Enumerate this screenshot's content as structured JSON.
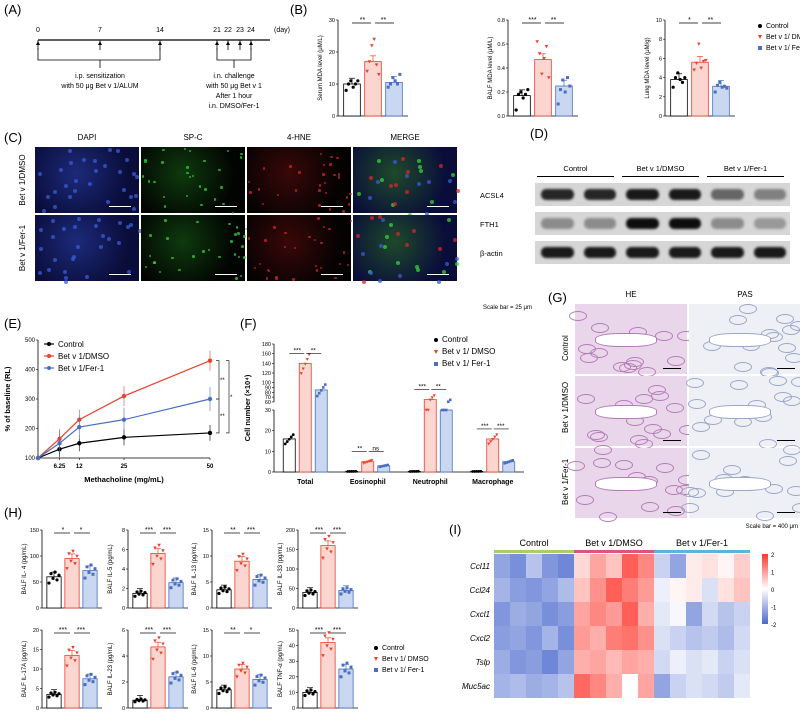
{
  "panels": {
    "A": "(A)",
    "B": "(B)",
    "C": "(C)",
    "D": "(D)",
    "E": "(E)",
    "F": "(F)",
    "G": "(G)",
    "H": "(H)",
    "I": "(I)"
  },
  "timeline": {
    "ticks": [
      "0",
      "7",
      "14",
      "21",
      "22",
      "23",
      "24"
    ],
    "unit": "(day)",
    "sensitization": [
      "i.p. sensitization",
      "with 50 μg Bet v 1/ALUM"
    ],
    "challenge": [
      "i.n. challenge",
      "with 50 μg Bet v 1",
      "After 1 hour",
      "i.n. DMSO/Fer-1"
    ]
  },
  "mda": {
    "legend": [
      "Control",
      "Bet v 1/ DMSO",
      "Bet v 1/ Fer-1"
    ],
    "plots": [
      {
        "ylabel": "Serum MDA level (μM/L)",
        "ticks": [
          "0",
          "10",
          "20",
          "30"
        ],
        "ymax": 30,
        "means": [
          10,
          17,
          10.5
        ],
        "sig": [
          "**",
          "**"
        ],
        "points": [
          [
            8,
            10,
            11,
            9,
            10,
            11
          ],
          [
            14,
            17,
            22,
            24,
            16,
            13
          ],
          [
            9,
            10,
            12,
            11,
            10,
            13
          ]
        ]
      },
      {
        "ylabel": "BALF MDA level (μM/L)",
        "ticks": [
          "0.0",
          "0.2",
          "0.4",
          "0.6",
          "0.8"
        ],
        "ymax": 0.8,
        "means": [
          0.17,
          0.47,
          0.25
        ],
        "sig": [
          "***",
          "**"
        ],
        "points": [
          [
            0.05,
            0.18,
            0.2,
            0.15,
            0.18,
            0.22
          ],
          [
            0.62,
            0.52,
            0.35,
            0.48,
            0.58,
            0.32
          ],
          [
            0.1,
            0.22,
            0.3,
            0.2,
            0.32,
            0.25
          ]
        ]
      },
      {
        "ylabel": "Lung MDA level (μM/g)",
        "ticks": [
          "0",
          "2",
          "4",
          "6",
          "8",
          "10"
        ],
        "ymax": 10,
        "means": [
          3.8,
          5.6,
          3.1
        ],
        "sig": [
          "*",
          "**"
        ],
        "points": [
          [
            3,
            4,
            4.5,
            3.8,
            3.5,
            4
          ],
          [
            4.8,
            5.5,
            7.5,
            5,
            5.7,
            5.8
          ],
          [
            2.5,
            3.2,
            3.5,
            3,
            3.1,
            2.9
          ]
        ]
      }
    ]
  },
  "if": {
    "columns": [
      "DAPI",
      "SP-C",
      "4-HNE",
      "MERGE"
    ],
    "rows": [
      "Bet v 1/DMSO",
      "Bet v 1/Fer-1"
    ],
    "scalebar": "Scale bar = 25 μm"
  },
  "wb": {
    "groups": [
      "Control",
      "Bet v 1/DMSO",
      "Bet v 1/Fer-1"
    ],
    "bands": [
      "ACSL4",
      "FTH1",
      "β-actin"
    ]
  },
  "chart_data": [
    {
      "type": "line",
      "xlabel": "Methacholine (mg/mL)",
      "ylabel": "% of baseline (RL)",
      "x": [
        0,
        6.25,
        12,
        25,
        50
      ],
      "xticks": [
        "6.25",
        "12",
        "25",
        "50"
      ],
      "yticks": [
        "100",
        "200",
        "300",
        "400",
        "500"
      ],
      "ylim": [
        100,
        500
      ],
      "series": [
        {
          "name": "Control",
          "values": [
            100,
            130,
            150,
            170,
            185
          ],
          "color": "#000000"
        },
        {
          "name": "Bet v 1/DMSO",
          "values": [
            100,
            165,
            230,
            310,
            430
          ],
          "color": "#e8412d"
        },
        {
          "name": "Bet v 1/Fer-1",
          "values": [
            100,
            150,
            205,
            230,
            300
          ],
          "color": "#4a6fc0"
        }
      ],
      "sig": [
        "**",
        "**",
        "*"
      ]
    },
    {
      "type": "bar",
      "ylabel": "Cell number (×10⁴)",
      "categories": [
        "Total",
        "Eosinophil",
        "Neutrophil",
        "Macrophage"
      ],
      "yticks": [
        "0",
        "10",
        "20",
        "30",
        "40",
        "50",
        "60",
        "70",
        "80",
        "90",
        "100",
        "120",
        "140",
        "160",
        "180"
      ],
      "series": [
        {
          "name": "Control",
          "values": [
            16,
            0.3,
            0.3,
            0.3
          ]
        },
        {
          "name": "Bet v 1/ DMSO",
          "values": [
            140,
            5,
            65,
            16
          ]
        },
        {
          "name": "Bet v 1/ Fer-1",
          "values": [
            85,
            3,
            57,
            5
          ]
        }
      ],
      "sig": [
        [
          "***",
          "**"
        ],
        [
          "**",
          "ns"
        ],
        [
          "***",
          "**"
        ],
        [
          "***",
          "***"
        ]
      ]
    }
  ],
  "histo": {
    "columns": [
      "HE",
      "PAS"
    ],
    "rows": [
      "Control",
      "Bet v 1/DMSO",
      "Bet v 1/Fer-1"
    ],
    "scalebar": "Scale bar = 400 μm"
  },
  "cytokines": {
    "legend": [
      "Control",
      "Bet v 1/ DMSO",
      "Bet v 1/ Fer-1"
    ],
    "plots": [
      {
        "ylabel": "BALF IL- 4 (pg/mL)",
        "ticks": [
          "0",
          "50",
          "100",
          "150"
        ],
        "ymax": 150,
        "means": [
          60,
          95,
          72
        ],
        "sig": [
          "*",
          "*"
        ]
      },
      {
        "ylabel": "BALF IL-5 (pg/mL)",
        "ticks": [
          "0",
          "2",
          "4",
          "6",
          "8"
        ],
        "ymax": 8,
        "means": [
          1.5,
          5.6,
          2.6
        ],
        "sig": [
          "***",
          "***"
        ]
      },
      {
        "ylabel": "BALF IL-13 (pg/mL)",
        "ticks": [
          "0",
          "5",
          "10",
          "15"
        ],
        "ymax": 15,
        "means": [
          3.5,
          9,
          5.5
        ],
        "sig": [
          "**",
          "***"
        ]
      },
      {
        "ylabel": "BALF IL-33 (pg/mL)",
        "ticks": [
          "0",
          "50",
          "100",
          "150",
          "200"
        ],
        "ymax": 200,
        "means": [
          40,
          160,
          45
        ],
        "sig": [
          "***",
          "***"
        ]
      },
      {
        "ylabel": "BALF IL-17A (pg/mL)",
        "ticks": [
          "0",
          "5",
          "10",
          "15",
          "20"
        ],
        "ymax": 20,
        "means": [
          3.5,
          13.5,
          7.5
        ],
        "sig": [
          "***",
          "***"
        ]
      },
      {
        "ylabel": "BALF IL-23 (pg/mL)",
        "ticks": [
          "0",
          "2",
          "4",
          "6"
        ],
        "ymax": 6,
        "means": [
          0.6,
          4.7,
          2.4
        ],
        "sig": [
          "***",
          "***"
        ]
      },
      {
        "ylabel": "BALF IL-6 (pg/mL)",
        "ticks": [
          "0",
          "5",
          "10",
          "15"
        ],
        "ymax": 15,
        "means": [
          3.5,
          7.5,
          5.5
        ],
        "sig": [
          "**",
          "*"
        ]
      },
      {
        "ylabel": "BALF TNF-α (pg/mL)",
        "ticks": [
          "0",
          "10",
          "20",
          "30",
          "40",
          "50"
        ],
        "ymax": 50,
        "means": [
          10,
          42,
          25
        ],
        "sig": [
          "***",
          "***"
        ]
      }
    ]
  },
  "heatmap": {
    "groups": [
      "Control",
      "Bet v 1/DMSO",
      "Bet v 1/Fer-1"
    ],
    "genes": [
      "Ccl11",
      "Ccl24",
      "Cxcl1",
      "Cxcl2",
      "Tslp",
      "Muc5ac"
    ],
    "scale": [
      "2",
      "1",
      "0",
      "-1",
      "-2"
    ],
    "values": [
      [
        -1.2,
        -1.5,
        -0.8,
        -1.4,
        -1.6,
        0.4,
        0.9,
        0.6,
        1.6,
        1.2,
        -0.6,
        -1.2,
        0.2,
        0.3,
        0.1,
        0.5
      ],
      [
        -1.0,
        -1.3,
        -1.4,
        -1.2,
        -0.9,
        0.6,
        1.1,
        1.6,
        1.3,
        1.0,
        -0.2,
        0.1,
        0.2,
        -0.4,
        0.3,
        0.6
      ],
      [
        -1.4,
        -1.1,
        -1.2,
        -1.5,
        -1.3,
        0.9,
        1.2,
        1.0,
        1.6,
        0.8,
        -0.3,
        -0.1,
        -1.2,
        -0.5,
        -0.8,
        -0.6
      ],
      [
        -1.3,
        -1.2,
        -1.4,
        -1.0,
        -1.5,
        1.0,
        0.8,
        1.3,
        1.4,
        1.1,
        -0.4,
        -0.6,
        -0.8,
        -0.7,
        -0.9,
        -0.5
      ],
      [
        -1.1,
        -1.4,
        -1.3,
        -1.6,
        -1.2,
        0.8,
        0.9,
        0.7,
        0.9,
        0.8,
        -0.5,
        -0.2,
        -0.4,
        -0.3,
        -0.6,
        -0.4
      ],
      [
        -1.0,
        -0.9,
        -1.1,
        -1.0,
        -0.8,
        1.5,
        1.2,
        0.8,
        0.0,
        0.9,
        -1.2,
        -0.6,
        -0.4,
        -0.5,
        -0.7,
        -0.3
      ]
    ]
  },
  "colors": {
    "control": "#000000",
    "dmso": "#e8412d",
    "fer1": "#4a6fc0",
    "dmso_fill": "#fbd5d0",
    "fer1_fill": "#c9d7f0"
  }
}
